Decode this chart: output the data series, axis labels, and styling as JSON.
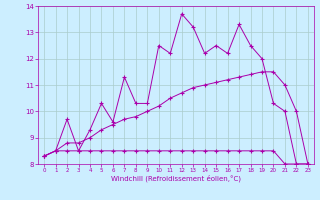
{
  "xlabel": "Windchill (Refroidissement éolien,°C)",
  "xlim": [
    -0.5,
    23.5
  ],
  "ylim": [
    8,
    14
  ],
  "yticks": [
    8,
    9,
    10,
    11,
    12,
    13,
    14
  ],
  "xticks": [
    0,
    1,
    2,
    3,
    4,
    5,
    6,
    7,
    8,
    9,
    10,
    11,
    12,
    13,
    14,
    15,
    16,
    17,
    18,
    19,
    20,
    21,
    22,
    23
  ],
  "background_color": "#cceeff",
  "grid_color": "#aacccc",
  "line_color": "#aa00aa",
  "lines": [
    {
      "x": [
        0,
        1,
        2,
        3,
        4,
        5,
        6,
        7,
        8,
        9,
        10,
        11,
        12,
        13,
        14,
        15,
        16,
        17,
        18,
        19,
        20,
        21,
        22,
        23
      ],
      "y": [
        8.3,
        8.5,
        8.5,
        8.5,
        8.5,
        8.5,
        8.5,
        8.5,
        8.5,
        8.5,
        8.5,
        8.5,
        8.5,
        8.5,
        8.5,
        8.5,
        8.5,
        8.5,
        8.5,
        8.5,
        8.5,
        8.0,
        8.0,
        8.0
      ]
    },
    {
      "x": [
        0,
        1,
        2,
        3,
        4,
        5,
        6,
        7,
        8,
        9,
        10,
        11,
        12,
        13,
        14,
        15,
        16,
        17,
        18,
        19,
        20,
        21,
        22,
        23
      ],
      "y": [
        8.3,
        8.5,
        8.8,
        8.8,
        9.0,
        9.3,
        9.5,
        9.7,
        9.8,
        10.0,
        10.2,
        10.5,
        10.7,
        10.9,
        11.0,
        11.1,
        11.2,
        11.3,
        11.4,
        11.5,
        11.5,
        11.0,
        10.0,
        8.0
      ]
    },
    {
      "x": [
        0,
        1,
        2,
        3,
        4,
        5,
        6,
        7,
        8,
        9,
        10,
        11,
        12,
        13,
        14,
        15,
        16,
        17,
        18,
        19,
        20,
        21,
        22,
        23
      ],
      "y": [
        8.3,
        8.5,
        9.7,
        8.5,
        9.3,
        10.3,
        9.6,
        11.3,
        10.3,
        10.3,
        12.5,
        12.2,
        13.7,
        13.2,
        12.2,
        12.5,
        12.2,
        13.3,
        12.5,
        12.0,
        10.3,
        10.0,
        8.0,
        8.0
      ]
    }
  ]
}
